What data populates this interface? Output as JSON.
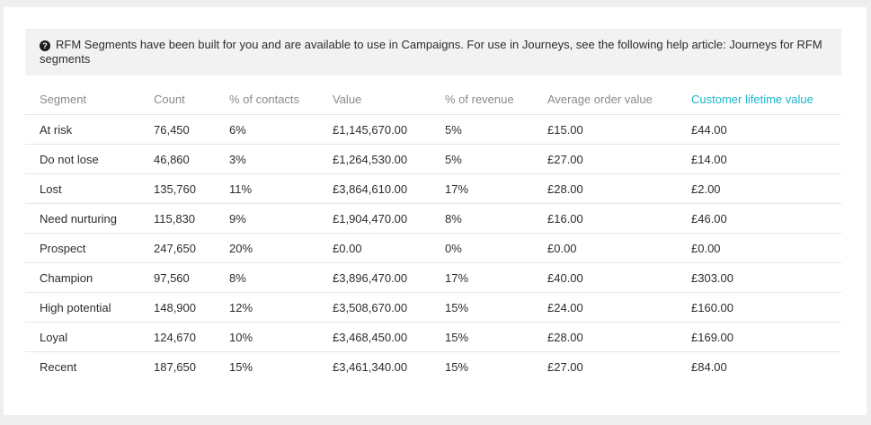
{
  "notice": {
    "icon": "info-icon",
    "text": "RFM Segments have been built for you and are available to use in Campaigns. For use in Journeys, see the following help article: Journeys for RFM segments"
  },
  "table": {
    "columns": [
      "Segment",
      "Count",
      "% of contacts",
      "Value",
      "% of revenue",
      "Average order value",
      "Customer lifetime value"
    ],
    "active_column": "Customer lifetime value",
    "active_color": "#1fb3c9",
    "rows": [
      [
        "At risk",
        "76,450",
        "6%",
        "£1,145,670.00",
        "5%",
        "£15.00",
        "£44.00"
      ],
      [
        "Do not lose",
        "46,860",
        "3%",
        "£1,264,530.00",
        "5%",
        "£27.00",
        "£14.00"
      ],
      [
        "Lost",
        "135,760",
        "11%",
        "£3,864,610.00",
        "17%",
        "£28.00",
        "£2.00"
      ],
      [
        "Need nurturing",
        "115,830",
        "9%",
        "£1,904,470.00",
        "8%",
        "£16.00",
        "£46.00"
      ],
      [
        "Prospect",
        "247,650",
        "20%",
        "£0.00",
        "0%",
        "£0.00",
        "£0.00"
      ],
      [
        "Champion",
        "97,560",
        "8%",
        "£3,896,470.00",
        "17%",
        "£40.00",
        "£303.00"
      ],
      [
        "High potential",
        "148,900",
        "12%",
        "£3,508,670.00",
        "15%",
        "£24.00",
        "£160.00"
      ],
      [
        "Loyal",
        "124,670",
        "10%",
        "£3,468,450.00",
        "15%",
        "£28.00",
        "£169.00"
      ],
      [
        "Recent",
        "187,650",
        "15%",
        "£3,461,340.00",
        "15%",
        "£27.00",
        "£84.00"
      ]
    ]
  }
}
